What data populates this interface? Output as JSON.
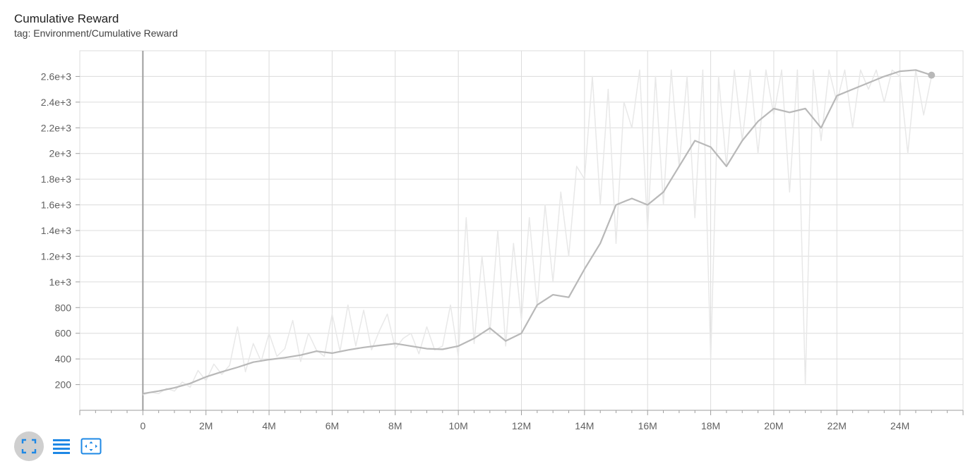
{
  "card": {
    "title": "Cumulative Reward",
    "subtitle": "tag: Environment/Cumulative Reward"
  },
  "toolbar": {
    "buttons": [
      {
        "icon": "expand-chart-icon",
        "active": true
      },
      {
        "icon": "data-table-icon",
        "active": false
      },
      {
        "icon": "fit-domain-icon",
        "active": false
      }
    ]
  },
  "colors": {
    "smoothed_line": "#b8b8b8",
    "raw_line": "#e8e8e8",
    "grid": "#dcdcdc",
    "axis_zero": "#9e9e9e",
    "toolbar_icon": "#1e88e5",
    "toolbar_active_bg": "#cfcfcf"
  },
  "chart_data": {
    "type": "line",
    "title": "Cumulative Reward",
    "xlabel": "",
    "ylabel": "",
    "xlim": [
      -2000000,
      26000000
    ],
    "ylim": [
      0,
      2800
    ],
    "x_ticks": [
      0,
      2000000,
      4000000,
      6000000,
      8000000,
      10000000,
      12000000,
      14000000,
      16000000,
      18000000,
      20000000,
      22000000,
      24000000
    ],
    "x_tick_labels": [
      "0",
      "2M",
      "4M",
      "6M",
      "8M",
      "10M",
      "12M",
      "14M",
      "16M",
      "18M",
      "20M",
      "22M",
      "24M"
    ],
    "y_ticks": [
      200,
      400,
      600,
      800,
      1000,
      1200,
      1400,
      1600,
      1800,
      2000,
      2200,
      2400,
      2600
    ],
    "y_tick_labels": [
      "200",
      "400",
      "600",
      "800",
      "1e+3",
      "1.2e+3",
      "1.4e+3",
      "1.6e+3",
      "1.8e+3",
      "2e+3",
      "2.2e+3",
      "2.4e+3",
      "2.6e+3"
    ],
    "grid": true,
    "legend": "none",
    "series": [
      {
        "role": "smoothed",
        "x": [
          0,
          500000,
          1000000,
          1500000,
          2000000,
          2500000,
          3000000,
          3500000,
          4000000,
          4500000,
          5000000,
          5500000,
          6000000,
          6500000,
          7000000,
          7500000,
          8000000,
          8500000,
          9000000,
          9500000,
          10000000,
          10500000,
          11000000,
          11500000,
          12000000,
          12500000,
          13000000,
          13500000,
          14000000,
          14500000,
          15000000,
          15500000,
          16000000,
          16500000,
          17000000,
          17500000,
          18000000,
          18500000,
          19000000,
          19500000,
          20000000,
          20500000,
          21000000,
          21500000,
          22000000,
          22500000,
          23000000,
          23500000,
          24000000,
          24500000,
          25000000
        ],
        "y": [
          130,
          150,
          175,
          210,
          260,
          300,
          335,
          375,
          395,
          410,
          430,
          460,
          445,
          470,
          490,
          505,
          520,
          500,
          480,
          475,
          500,
          560,
          640,
          540,
          600,
          820,
          900,
          880,
          1100,
          1300,
          1600,
          1650,
          1600,
          1700,
          1900,
          2100,
          2050,
          1900,
          2100,
          2250,
          2350,
          2320,
          2350,
          2200,
          2450,
          2500,
          2550,
          2600,
          2640,
          2650,
          2610
        ]
      },
      {
        "role": "raw",
        "x": [
          0,
          250000,
          500000,
          750000,
          1000000,
          1250000,
          1500000,
          1750000,
          2000000,
          2250000,
          2500000,
          2750000,
          3000000,
          3250000,
          3500000,
          3750000,
          4000000,
          4250000,
          4500000,
          4750000,
          5000000,
          5250000,
          5500000,
          5750000,
          6000000,
          6250000,
          6500000,
          6750000,
          7000000,
          7250000,
          7500000,
          7750000,
          8000000,
          8250000,
          8500000,
          8750000,
          9000000,
          9250000,
          9500000,
          9750000,
          10000000,
          10250000,
          10500000,
          10750000,
          11000000,
          11250000,
          11500000,
          11750000,
          12000000,
          12250000,
          12500000,
          12750000,
          13000000,
          13250000,
          13500000,
          13750000,
          14000000,
          14250000,
          14500000,
          14750000,
          15000000,
          15250000,
          15500000,
          15750000,
          16000000,
          16250000,
          16500000,
          16750000,
          17000000,
          17250000,
          17500000,
          17750000,
          18000000,
          18250000,
          18500000,
          18750000,
          19000000,
          19250000,
          19500000,
          19750000,
          20000000,
          20250000,
          20500000,
          20750000,
          21000000,
          21250000,
          21500000,
          21750000,
          22000000,
          22250000,
          22500000,
          22750000,
          23000000,
          23250000,
          23500000,
          23750000,
          24000000,
          24250000,
          24500000,
          24750000,
          25000000
        ],
        "y": [
          120,
          140,
          130,
          170,
          150,
          220,
          180,
          310,
          230,
          360,
          280,
          350,
          650,
          300,
          520,
          380,
          600,
          420,
          480,
          700,
          380,
          600,
          470,
          420,
          750,
          460,
          820,
          500,
          780,
          470,
          620,
          750,
          480,
          560,
          600,
          440,
          650,
          470,
          500,
          820,
          420,
          1500,
          520,
          1200,
          600,
          1400,
          500,
          1300,
          700,
          1500,
          800,
          1600,
          1000,
          1700,
          1200,
          1900,
          1800,
          2600,
          1600,
          2500,
          1300,
          2400,
          2200,
          2650,
          1400,
          2600,
          1600,
          2650,
          1900,
          2600,
          1500,
          2650,
          400,
          2600,
          1900,
          2650,
          2100,
          2650,
          2000,
          2650,
          2300,
          2650,
          1700,
          2650,
          200,
          2650,
          2100,
          2650,
          2400,
          2650,
          2200,
          2650,
          2500,
          2650,
          2400,
          2650,
          2600,
          2000,
          2650,
          2300,
          2600
        ]
      }
    ]
  }
}
